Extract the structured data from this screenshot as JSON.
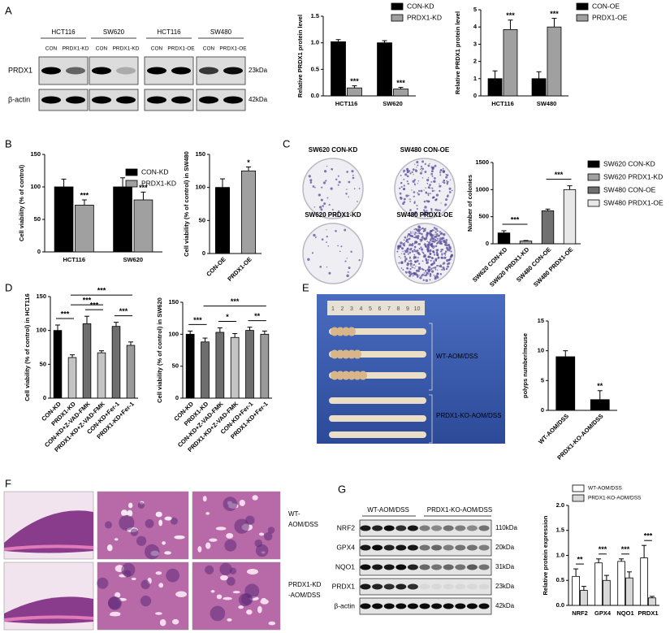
{
  "panel_letters": [
    "A",
    "B",
    "C",
    "D",
    "E",
    "F",
    "G"
  ],
  "blot_a": {
    "groups": [
      "HCT116",
      "SW620",
      "HCT116",
      "SW480"
    ],
    "lanes": [
      "CON",
      "PRDX1-KD",
      "CON",
      "PRDX1-KD",
      "CON",
      "PRDX1-OE",
      "CON",
      "PRDX1-OE"
    ],
    "rows": [
      "PRDX1",
      "β-actin"
    ],
    "sizes": [
      "23kDa",
      "42kDa"
    ]
  },
  "plates_c": [
    "SW620 CON-KD",
    "SW480 CON-OE",
    "SW620 PRDX1-KD",
    "SW480 PRDX1-OE"
  ],
  "photo_e": {
    "ruler": [
      "1",
      "2",
      "3",
      "4",
      "5",
      "6",
      "7",
      "8",
      "9",
      "10"
    ],
    "groups": [
      "WT-AOM/DSS",
      "PRDX1-KO-AOM/DSS"
    ]
  },
  "histology_f": {
    "rows": [
      [
        "WT-",
        "AOM/DSS"
      ],
      [
        "PRDX1-KD",
        "-AOM/DSS"
      ]
    ]
  },
  "blot_g": {
    "groups": [
      "WT-AOM/DSS",
      "PRDX1-KO-AOM/DSS"
    ],
    "rows": [
      "NRF2",
      "GPX4",
      "NQO1",
      "PRDX1",
      "β-actin"
    ],
    "sizes": [
      "110kDa",
      "20kDa",
      "31kDa",
      "23kDa",
      "42kDa"
    ]
  },
  "chart_data": [
    {
      "type": "bar",
      "y_label": "Relative PRDX1 protein level",
      "categories": [
        "HCT116",
        "SW620"
      ],
      "series": [
        {
          "name": "CON-KD",
          "color": "#000000",
          "values": [
            1.02,
            1.0
          ],
          "errors": [
            0.04,
            0.04
          ]
        },
        {
          "name": "PRDX1-KD",
          "color": "#a0a0a0",
          "values": [
            0.15,
            0.13
          ],
          "errors": [
            0.04,
            0.03
          ],
          "significance": [
            "***",
            "***"
          ]
        }
      ],
      "ylim": [
        0,
        1.5
      ],
      "yticks": [
        {
          "value": 0,
          "label": "0.0"
        },
        {
          "value": 0.5,
          "label": "0.5"
        },
        {
          "value": 1,
          "label": "1.0"
        },
        {
          "value": 1.5,
          "label": "1.5"
        }
      ],
      "legend": "top-right"
    },
    {
      "type": "bar",
      "y_label": "Relative PRDX1 protein level",
      "categories": [
        "HCT116",
        "SW480"
      ],
      "series": [
        {
          "name": "CON-OE",
          "color": "#000000",
          "values": [
            1.0,
            1.0
          ],
          "errors": [
            0.45,
            0.4
          ]
        },
        {
          "name": "PRDX1-OE",
          "color": "#a0a0a0",
          "values": [
            3.85,
            4.0
          ],
          "errors": [
            0.55,
            0.5
          ],
          "significance": [
            "***",
            "***"
          ]
        }
      ],
      "ylim": [
        0,
        5
      ],
      "yticks": [
        0,
        1,
        2,
        3,
        4,
        5
      ],
      "legend": "top-right"
    },
    {
      "type": "bar",
      "y_label": "Cell viability (% of control)",
      "categories": [
        "HCT116",
        "SW620"
      ],
      "series": [
        {
          "name": "CON-KD",
          "color": "#000000",
          "values": [
            100,
            100
          ],
          "errors": [
            12,
            14
          ]
        },
        {
          "name": "PRDX1-KD",
          "color": "#a0a0a0",
          "values": [
            72,
            80
          ],
          "errors": [
            8,
            12
          ],
          "significance": [
            "***",
            "***"
          ]
        }
      ],
      "ylim": [
        0,
        150
      ],
      "yticks": [
        0,
        50,
        100,
        150
      ],
      "legend": "top-right"
    },
    {
      "type": "bar",
      "y_label": "Cell viability (% of control) in SW480",
      "categories": [
        "CON-OE",
        "PRDX1-OE"
      ],
      "values": [
        100,
        125
      ],
      "errors": [
        13,
        6
      ],
      "colors": [
        "#000000",
        "#a0a0a0"
      ],
      "significance": [
        null,
        "*"
      ],
      "ylim": [
        0,
        150
      ],
      "yticks": [
        0,
        50,
        100,
        150
      ]
    },
    {
      "type": "bar",
      "y_label": "Number of colonies",
      "categories": [
        "SW620 CON-KD",
        "SW620 PRDX1-KD",
        "SW480 CON-OE",
        "SW480 PRDX1-OE"
      ],
      "values": [
        200,
        50,
        610,
        1000
      ],
      "errors": [
        40,
        10,
        30,
        70
      ],
      "colors": [
        "#000000",
        "#a0a0a0",
        "#707070",
        "#e8e8e8"
      ],
      "comparisons": [
        {
          "text": "***",
          "between": [
            "SW620 CON-KD",
            "SW620 PRDX1-KD"
          ]
        },
        {
          "text": "***",
          "between": [
            "SW480 CON-OE",
            "SW480 PRDX1-OE"
          ]
        }
      ],
      "ylim": [
        0,
        1500
      ],
      "yticks": [
        0,
        500,
        1000,
        1500
      ],
      "legend": "right"
    },
    {
      "type": "bar",
      "y_label": "Cell viability (% of control) in HCT116",
      "categories": [
        "CON-KD",
        "PRDX1-KD",
        "CON-KD+Z-VAD-FMK",
        "PRDX1-KD+Z-VAD-FMK",
        "CON-KD+Fer-1",
        "PRDX1-KD+Fer-1"
      ],
      "values": [
        100,
        60,
        110,
        67,
        106,
        78
      ],
      "errors": [
        8,
        4,
        11,
        3,
        6,
        5
      ],
      "colors": [
        "#000000",
        "#c4c4c4",
        "#6e6e6e",
        "#c4c4c4",
        "#6e6e6e",
        "#9a9a9a"
      ],
      "comparisons": [
        {
          "text": "***",
          "between": [
            "CON-KD",
            "PRDX1-KD"
          ]
        },
        {
          "text": "***",
          "between": [
            "CON-KD+Z-VAD-FMK",
            "PRDX1-KD+Z-VAD-FMK"
          ]
        },
        {
          "text": "***",
          "between": [
            "CON-KD+Fer-1",
            "PRDX1-KD+Fer-1"
          ]
        },
        {
          "text": "***",
          "between": [
            "PRDX1-KD",
            "PRDX1-KD+Z-VAD-FMK"
          ]
        },
        {
          "text": "***",
          "between": [
            "PRDX1-KD",
            "PRDX1-KD+Fer-1"
          ]
        }
      ],
      "ylim": [
        0,
        150
      ],
      "yticks": [
        0,
        50,
        100,
        150
      ]
    },
    {
      "type": "bar",
      "y_label": "Cell viability (% of control) in SW620",
      "categories": [
        "CON-KD",
        "PRDX1-KD",
        "CON-KD+Z-VAD-FMK",
        "PRDX1-KD+Z-VAD-FMK",
        "CON-KD+Fer-1",
        "PRDX1-KD+Fer-1"
      ],
      "values": [
        100,
        88,
        103,
        95,
        106,
        100
      ],
      "errors": [
        5,
        6,
        7,
        6,
        5,
        5
      ],
      "colors": [
        "#000000",
        "#6e6e6e",
        "#6e6e6e",
        "#c4c4c4",
        "#6e6e6e",
        "#9a9a9a"
      ],
      "comparisons": [
        {
          "text": "***",
          "between": [
            "CON-KD",
            "PRDX1-KD"
          ]
        },
        {
          "text": "*",
          "between": [
            "CON-KD+Z-VAD-FMK",
            "PRDX1-KD+Z-VAD-FMK"
          ]
        },
        {
          "text": "**",
          "between": [
            "CON-KD+Fer-1",
            "PRDX1-KD+Fer-1"
          ]
        },
        {
          "text": "***",
          "between": [
            "PRDX1-KD",
            "PRDX1-KD+Fer-1"
          ]
        }
      ],
      "ylim": [
        0,
        150
      ],
      "yticks": [
        0,
        50,
        100,
        150
      ]
    },
    {
      "type": "bar",
      "y_label": "polyps number/mouse",
      "categories": [
        "WT-AOM/DSS",
        "PRDX1-KO-AOM/DSS"
      ],
      "values": [
        9,
        1.8
      ],
      "errors": [
        1,
        1.5
      ],
      "colors": [
        "#000000",
        "#000000"
      ],
      "significance": [
        null,
        "**"
      ],
      "ylim": [
        0,
        15
      ],
      "yticks": [
        0,
        5,
        10,
        15
      ]
    },
    {
      "type": "bar",
      "y_label": "Relative protein expression",
      "categories": [
        "NRF2",
        "GPX4",
        "NQO1",
        "PRDX1"
      ],
      "series": [
        {
          "name": "WT-AOM/DSS",
          "color": "#ffffff",
          "values": [
            0.58,
            0.85,
            0.88,
            0.95
          ],
          "errors": [
            0.15,
            0.08,
            0.05,
            0.25
          ]
        },
        {
          "name": "PRDX1-KO-AOM/DSS",
          "color": "#d9d9d9",
          "values": [
            0.3,
            0.5,
            0.55,
            0.15
          ],
          "errors": [
            0.08,
            0.1,
            0.12,
            0.03
          ]
        }
      ],
      "category_significance": [
        "**",
        "***",
        "***",
        "***"
      ],
      "ylim": [
        0,
        2.0
      ],
      "yticks": [
        {
          "value": 0,
          "label": "0.0"
        },
        {
          "value": 0.5,
          "label": "0.5"
        },
        {
          "value": 1,
          "label": "1.0"
        },
        {
          "value": 1.5,
          "label": "1.5"
        },
        {
          "value": 2,
          "label": "2.0"
        }
      ],
      "legend": "top"
    }
  ]
}
